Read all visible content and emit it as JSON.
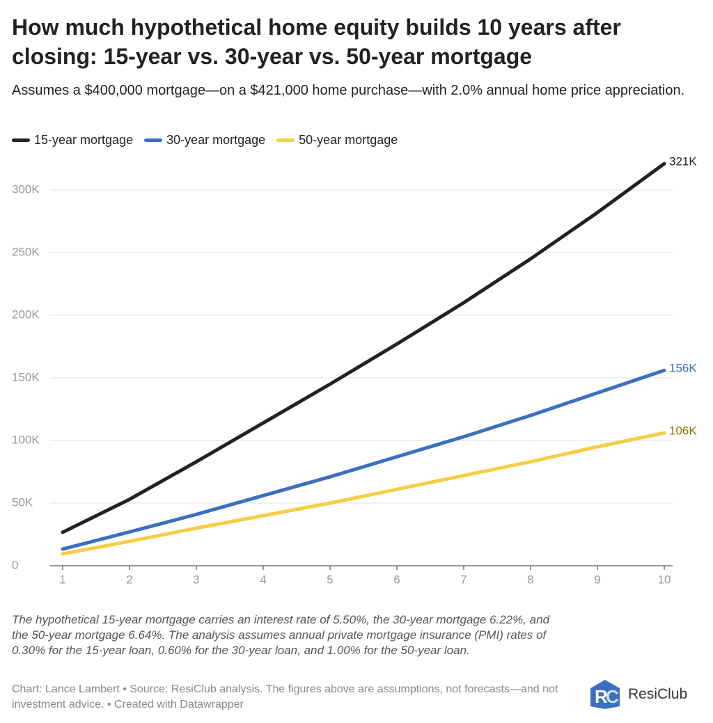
{
  "chart_data": {
    "type": "line",
    "title": "How much hypothetical home equity builds 10 years after closing: 15-year vs. 30-year vs. 50-year mortgage",
    "subtitle": "Assumes a $400,000 mortgage—on a $421,000 home purchase—with 2.0% annual home price appreciation.",
    "x": [
      1,
      2,
      3,
      4,
      5,
      6,
      7,
      8,
      9,
      10
    ],
    "xlim": [
      1,
      10
    ],
    "xticks": [
      1,
      2,
      3,
      4,
      5,
      6,
      7,
      8,
      9,
      10
    ],
    "ylim": [
      0,
      325000
    ],
    "yticks": [
      0,
      {
        "value": 50000,
        "label": "50K"
      },
      {
        "value": 100000,
        "label": "100K"
      },
      {
        "value": 150000,
        "label": "150K"
      },
      {
        "value": 200000,
        "label": "200K"
      },
      {
        "value": 250000,
        "label": "250K"
      },
      {
        "value": 300000,
        "label": "300K"
      }
    ],
    "grid": true,
    "series": [
      {
        "name": "15-year mortgage",
        "color": "#222222",
        "label_color": "#222222",
        "end_label": "321K",
        "values": [
          26700,
          53000,
          83000,
          114000,
          145000,
          177000,
          210000,
          245000,
          282000,
          321000
        ]
      },
      {
        "name": "30-year mortgage",
        "color": "#3b6fbf",
        "label_color": "#3b6fbf",
        "end_label": "156K",
        "values": [
          13300,
          27000,
          41000,
          56000,
          71000,
          87000,
          103000,
          120000,
          138000,
          156000
        ]
      },
      {
        "name": "50-year mortgage",
        "color": "#f7cd45",
        "label_color": "#8f7000",
        "end_label": "106K",
        "values": [
          9400,
          19500,
          30000,
          40000,
          50000,
          61000,
          72000,
          83000,
          95000,
          106000
        ]
      }
    ],
    "notes": "The hypothetical 15-year mortgage carries an interest rate of 5.50%, the 30-year mortgage 6.22%, and the 50-year mortgage 6.64%. The analysis assumes annual private mortgage insurance (PMI) rates of 0.30% for the 15-year loan, 0.60% for the 30-year loan, and 1.00% for the 50-year loan.",
    "source": "Chart: Lance Lambert • Source: ResiClub analysis. The figures above are assumptions, not forecasts—and not investment advice. • Created with Datawrapper",
    "logo": "ResiClub"
  }
}
